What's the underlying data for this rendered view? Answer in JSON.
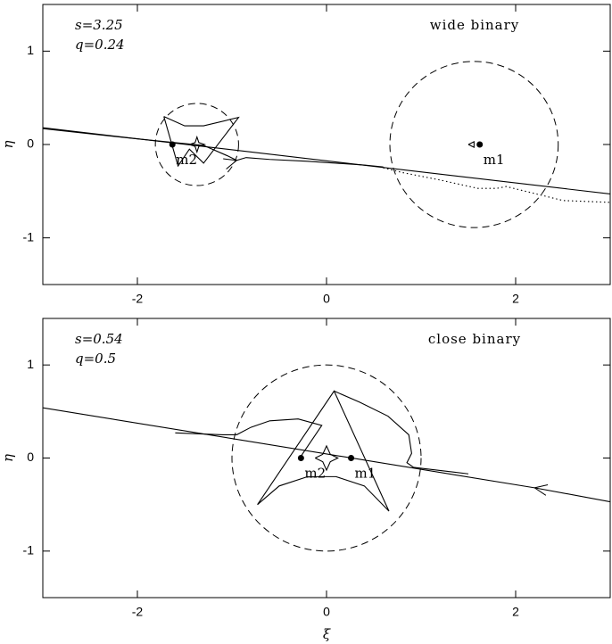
{
  "chart_data": [
    {
      "type": "line",
      "title": "wide binary",
      "annotations": [
        "s=3.25",
        "q=0.24"
      ],
      "ylabel": "η",
      "xlim": [
        -3,
        3
      ],
      "ylim": [
        -1.5,
        1.5
      ],
      "xticks": [
        -2,
        0,
        2
      ],
      "yticks": [
        -1,
        0,
        1
      ],
      "masses": [
        {
          "label": "m1",
          "x": 1.62,
          "y": 0
        },
        {
          "label": "m2",
          "x": -1.63,
          "y": 0
        }
      ],
      "circles": [
        {
          "cx": -1.37,
          "cy": 0,
          "r": 0.44
        },
        {
          "cx": 1.56,
          "cy": 0,
          "r": 0.89
        }
      ],
      "series": [
        {
          "x": [
            -3,
            3
          ],
          "y": [
            0.18,
            -0.53
          ],
          "color": "#000000",
          "style": "solid"
        },
        {
          "x": [
            -3,
            -2,
            -1.6,
            -1.3,
            -1.05,
            -0.95,
            -0.85,
            -0.6,
            -0.2,
            0.4,
            0.6
          ],
          "y": [
            0.17,
            0.06,
            0.02,
            -0.01,
            -0.12,
            -0.17,
            -0.14,
            -0.16,
            -0.18,
            -0.22,
            -0.24
          ],
          "color": "#000000",
          "style": "solid",
          "arrow": "right"
        },
        {
          "x": [
            0.6,
            0.8,
            1.2,
            1.6,
            1.8,
            1.9,
            2.1,
            2.5,
            3
          ],
          "y": [
            -0.25,
            -0.3,
            -0.38,
            -0.47,
            -0.47,
            -0.45,
            -0.5,
            -0.6,
            -0.62
          ],
          "color": "#000000",
          "style": "dotted"
        },
        {
          "x": [
            -1.72,
            -1.5,
            -1.3,
            -0.93,
            -1.3,
            -1.45,
            -1.57,
            -1.72
          ],
          "y": [
            0.3,
            0.2,
            0.2,
            0.29,
            -0.2,
            -0.05,
            -0.23,
            0.3
          ],
          "color": "#000000",
          "style": "solid"
        },
        {
          "x": [
            -1.45,
            -1.39,
            -1.37,
            -1.35,
            -1.29,
            -1.35,
            -1.37,
            -1.39,
            -1.45
          ],
          "y": [
            0,
            0.02,
            0.08,
            0.02,
            0,
            -0.02,
            -0.08,
            -0.02,
            0
          ],
          "color": "#000000",
          "style": "solid"
        },
        {
          "x": [
            1.5,
            1.56,
            1.56,
            1.5
          ],
          "y": [
            0,
            0.03,
            -0.03,
            0
          ],
          "color": "#000000",
          "style": "solid"
        }
      ]
    },
    {
      "type": "line",
      "title": "close binary",
      "annotations": [
        "s=0.54",
        "q=0.5"
      ],
      "ylabel": "η",
      "xlabel": "ξ",
      "xlim": [
        -3,
        3
      ],
      "ylim": [
        -1.5,
        1.5
      ],
      "xticks": [
        -2,
        0,
        2
      ],
      "yticks": [
        -1,
        0,
        1
      ],
      "masses": [
        {
          "label": "m1",
          "x": 0.26,
          "y": 0
        },
        {
          "label": "m2",
          "x": -0.27,
          "y": 0
        }
      ],
      "circles": [
        {
          "cx": 0,
          "cy": 0,
          "r": 1.0
        }
      ],
      "series": [
        {
          "x": [
            -3,
            2.2,
            3
          ],
          "y": [
            0.54,
            -0.32,
            -0.47
          ],
          "color": "#000000",
          "style": "solid",
          "arrow": "left"
        },
        {
          "x": [
            -1.6,
            -1.1,
            -0.95,
            -0.8,
            -0.6,
            -0.3,
            -0.05,
            -0.27
          ],
          "y": [
            0.27,
            0.25,
            0.25,
            0.33,
            0.4,
            0.42,
            0.35,
            0.02
          ],
          "color": "#000000",
          "style": "solid"
        },
        {
          "x": [
            -0.73,
            0.08,
            0.66
          ],
          "y": [
            -0.5,
            0.72,
            -0.57
          ],
          "color": "#000000",
          "style": "solid"
        },
        {
          "x": [
            -0.73,
            -0.5,
            -0.2,
            0.1,
            0.4,
            0.66
          ],
          "y": [
            -0.5,
            -0.3,
            -0.2,
            -0.2,
            -0.3,
            -0.57
          ],
          "color": "#000000",
          "style": "solid"
        },
        {
          "x": [
            0.08,
            0.35,
            0.65,
            0.87,
            0.9,
            0.85,
            0.92,
            1.5
          ],
          "y": [
            0.72,
            0.6,
            0.45,
            0.25,
            0.05,
            -0.05,
            -0.1,
            -0.17
          ],
          "color": "#000000",
          "style": "solid"
        },
        {
          "x": [
            -0.12,
            -0.04,
            0,
            0.04,
            0.12,
            0.04,
            0,
            -0.04,
            -0.12
          ],
          "y": [
            0,
            0.04,
            0.13,
            0.04,
            0,
            -0.04,
            -0.13,
            -0.04,
            0
          ],
          "color": "#000000",
          "style": "solid"
        }
      ]
    }
  ]
}
